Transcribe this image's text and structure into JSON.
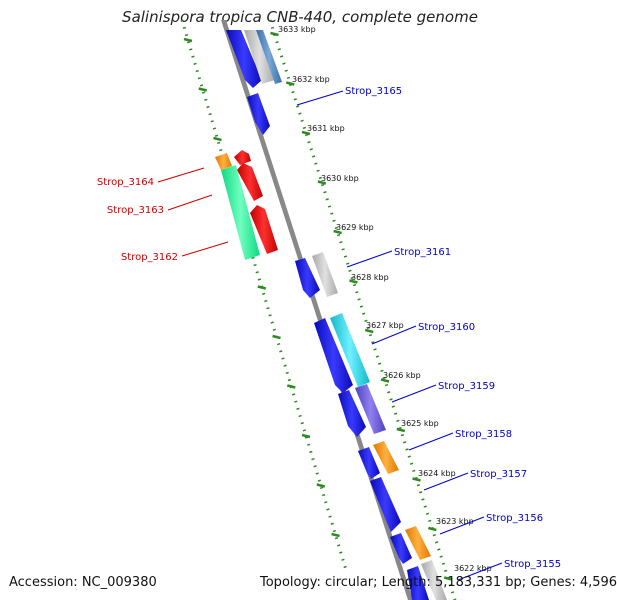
{
  "title": "Salinispora tropica CNB-440, complete genome",
  "accession": "Accession: NC_009380",
  "summary": "Topology: circular; Length: 5,183,331 bp; Genes: 4,596",
  "colors": {
    "backbone": "#888888",
    "ticks": "#2e8b22",
    "forward_label": "#0000cc",
    "reverse_label": "#cc0000"
  },
  "scale_ticks": [
    {
      "label": "3633 kbp"
    },
    {
      "label": "3632 kbp"
    },
    {
      "label": "3631 kbp"
    },
    {
      "label": "3630 kbp"
    },
    {
      "label": "3629 kbp"
    },
    {
      "label": "3628 kbp"
    },
    {
      "label": "3627 kbp"
    },
    {
      "label": "3626 kbp"
    },
    {
      "label": "3625 kbp"
    },
    {
      "label": "3624 kbp"
    },
    {
      "label": "3623 kbp"
    },
    {
      "label": "3622 kbp"
    }
  ],
  "labels": [
    {
      "name": "Strop_3165",
      "strand": "forward"
    },
    {
      "name": "Strop_3164",
      "strand": "reverse"
    },
    {
      "name": "Strop_3163",
      "strand": "reverse"
    },
    {
      "name": "Strop_3162",
      "strand": "reverse"
    },
    {
      "name": "Strop_3161",
      "strand": "forward"
    },
    {
      "name": "Strop_3160",
      "strand": "forward"
    },
    {
      "name": "Strop_3159",
      "strand": "forward"
    },
    {
      "name": "Strop_3158",
      "strand": "forward"
    },
    {
      "name": "Strop_3157",
      "strand": "forward"
    },
    {
      "name": "Strop_3156",
      "strand": "forward"
    },
    {
      "name": "Strop_3155",
      "strand": "forward"
    }
  ]
}
